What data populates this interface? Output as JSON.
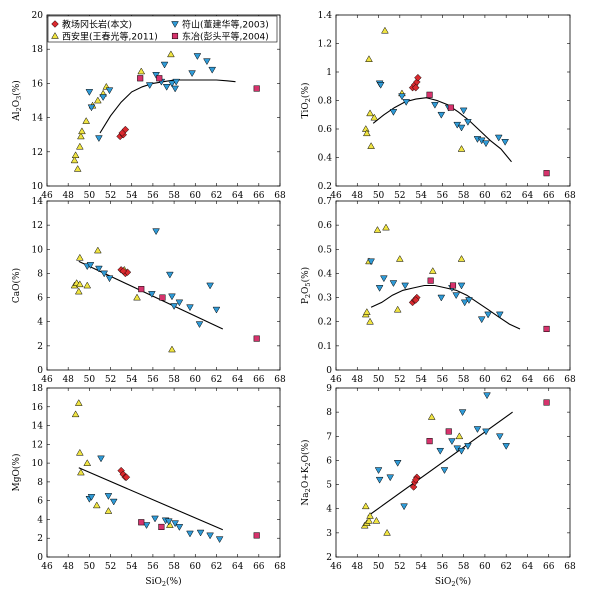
{
  "legend": [
    {
      "key": "diamond",
      "label": "教场冈长岩(本文)",
      "shape": "diamond",
      "color": "#d9292e"
    },
    {
      "key": "down",
      "label": "符山(董建华等,2003)",
      "shape": "tri-down",
      "color": "#2f9ad6"
    },
    {
      "key": "up",
      "label": "西安里(王春光等,2011)",
      "shape": "tri-up",
      "color": "#f0e442"
    },
    {
      "key": "square",
      "label": "东冶(彭头平等,2004)",
      "shape": "square",
      "color": "#d6336c"
    }
  ],
  "chart_data": [
    {
      "type": "scatter",
      "ylabel": [
        "Al",
        "2",
        "O",
        "3",
        "(%)"
      ],
      "xlim": [
        46,
        68
      ],
      "ylim": [
        10,
        20
      ],
      "yticks": [
        10,
        12,
        14,
        16,
        18,
        20
      ],
      "series": {
        "up": [
          [
            48.6,
            11.5
          ],
          [
            48.7,
            11.8
          ],
          [
            48.9,
            11.0
          ],
          [
            49.1,
            12.3
          ],
          [
            49.2,
            12.9
          ],
          [
            49.3,
            13.2
          ],
          [
            49.7,
            13.8
          ],
          [
            50.3,
            14.7
          ],
          [
            50.8,
            15.0
          ],
          [
            51.3,
            15.4
          ],
          [
            51.6,
            15.8
          ],
          [
            54.9,
            16.7
          ],
          [
            57.7,
            17.7
          ]
        ],
        "down": [
          [
            50.0,
            15.5
          ],
          [
            50.2,
            14.6
          ],
          [
            50.9,
            12.8
          ],
          [
            51.3,
            15.2
          ],
          [
            51.9,
            15.6
          ],
          [
            55.7,
            15.9
          ],
          [
            56.3,
            16.5
          ],
          [
            56.8,
            16.1
          ],
          [
            57.1,
            17.1
          ],
          [
            57.3,
            15.8
          ],
          [
            57.8,
            16.0
          ],
          [
            58.1,
            15.7
          ],
          [
            58.2,
            16.1
          ],
          [
            59.7,
            16.6
          ],
          [
            60.2,
            17.6
          ],
          [
            61.1,
            17.3
          ],
          [
            61.6,
            16.8
          ]
        ],
        "diamond": [
          [
            52.9,
            12.9
          ],
          [
            53.2,
            13.0
          ],
          [
            53.4,
            13.3
          ],
          [
            53.1,
            13.1
          ]
        ],
        "square": [
          [
            54.8,
            16.3
          ],
          [
            56.6,
            16.3
          ],
          [
            65.8,
            15.7
          ]
        ]
      },
      "trend": [
        [
          51.0,
          13.1
        ],
        [
          52.0,
          14.1
        ],
        [
          53.0,
          14.9
        ],
        [
          54.0,
          15.5
        ],
        [
          55.0,
          15.8
        ],
        [
          56.0,
          16.0
        ],
        [
          57.0,
          16.1
        ],
        [
          58.0,
          16.2
        ],
        [
          59.0,
          16.2
        ],
        [
          60.0,
          16.2
        ],
        [
          61.0,
          16.2
        ],
        [
          62.0,
          16.2
        ],
        [
          63.0,
          16.15
        ],
        [
          63.8,
          16.1
        ]
      ]
    },
    {
      "type": "scatter",
      "ylabel": [
        "TiO",
        "2",
        "(%)"
      ],
      "xlim": [
        46,
        68
      ],
      "ylim": [
        0.2,
        1.4
      ],
      "yticks": [
        0.2,
        0.4,
        0.6,
        0.8,
        1.0,
        1.2,
        1.4
      ],
      "series": {
        "up": [
          [
            48.8,
            0.6
          ],
          [
            48.9,
            0.57
          ],
          [
            49.1,
            1.09
          ],
          [
            49.2,
            0.71
          ],
          [
            49.3,
            0.48
          ],
          [
            49.6,
            0.68
          ],
          [
            50.6,
            1.29
          ],
          [
            52.2,
            0.85
          ],
          [
            57.8,
            0.46
          ]
        ],
        "down": [
          [
            50.1,
            0.92
          ],
          [
            50.2,
            0.91
          ],
          [
            51.4,
            0.72
          ],
          [
            52.2,
            0.83
          ],
          [
            52.6,
            0.79
          ],
          [
            55.3,
            0.77
          ],
          [
            55.9,
            0.7
          ],
          [
            56.6,
            0.75
          ],
          [
            57.4,
            0.63
          ],
          [
            57.8,
            0.61
          ],
          [
            58.0,
            0.73
          ],
          [
            58.4,
            0.65
          ],
          [
            59.3,
            0.53
          ],
          [
            59.7,
            0.52
          ],
          [
            60.1,
            0.5
          ],
          [
            61.3,
            0.54
          ],
          [
            61.9,
            0.51
          ]
        ],
        "diamond": [
          [
            53.2,
            0.89
          ],
          [
            53.4,
            0.91
          ],
          [
            53.6,
            0.93
          ],
          [
            53.7,
            0.96
          ],
          [
            53.5,
            0.89
          ]
        ],
        "square": [
          [
            54.8,
            0.84
          ],
          [
            56.8,
            0.75
          ],
          [
            65.8,
            0.29
          ]
        ]
      },
      "trend": [
        [
          49.5,
          0.64
        ],
        [
          50.5,
          0.7
        ],
        [
          51.5,
          0.75
        ],
        [
          52.5,
          0.79
        ],
        [
          53.5,
          0.81
        ],
        [
          54.5,
          0.82
        ],
        [
          55.5,
          0.8
        ],
        [
          56.5,
          0.77
        ],
        [
          57.5,
          0.72
        ],
        [
          58.5,
          0.66
        ],
        [
          59.5,
          0.59
        ],
        [
          60.5,
          0.52
        ],
        [
          61.5,
          0.46
        ],
        [
          62.5,
          0.37
        ]
      ]
    },
    {
      "type": "scatter",
      "ylabel": [
        "CaO(%)"
      ],
      "xlim": [
        46,
        68
      ],
      "ylim": [
        0,
        14
      ],
      "yticks": [
        0,
        2,
        4,
        6,
        8,
        10,
        12,
        14
      ],
      "series": {
        "up": [
          [
            48.6,
            7.0
          ],
          [
            48.8,
            7.2
          ],
          [
            49.0,
            6.5
          ],
          [
            49.1,
            7.1
          ],
          [
            49.1,
            9.3
          ],
          [
            49.8,
            7.0
          ],
          [
            50.8,
            9.9
          ],
          [
            53.3,
            8.3
          ],
          [
            54.5,
            6.0
          ],
          [
            57.8,
            1.7
          ]
        ],
        "down": [
          [
            49.8,
            8.6
          ],
          [
            50.1,
            8.7
          ],
          [
            50.9,
            8.4
          ],
          [
            51.4,
            8.0
          ],
          [
            51.9,
            7.6
          ],
          [
            55.9,
            6.3
          ],
          [
            56.3,
            11.5
          ],
          [
            57.6,
            7.9
          ],
          [
            57.8,
            6.1
          ],
          [
            58.0,
            5.3
          ],
          [
            58.5,
            5.6
          ],
          [
            59.5,
            5.2
          ],
          [
            60.4,
            3.8
          ],
          [
            61.4,
            7.0
          ],
          [
            62.0,
            5.0
          ]
        ],
        "diamond": [
          [
            53.0,
            8.3
          ],
          [
            53.4,
            8.0
          ],
          [
            53.6,
            8.1
          ],
          [
            53.2,
            8.2
          ]
        ],
        "square": [
          [
            54.9,
            6.7
          ],
          [
            56.9,
            6.0
          ],
          [
            65.8,
            2.6
          ]
        ]
      },
      "trend": [
        [
          49.0,
          9.0
        ],
        [
          62.6,
          3.4
        ]
      ]
    },
    {
      "type": "scatter",
      "ylabel": [
        "P",
        "2",
        "O",
        "5",
        "(%)"
      ],
      "xlim": [
        46,
        68
      ],
      "ylim": [
        0,
        0.7
      ],
      "yticks": [
        0,
        0.1,
        0.2,
        0.3,
        0.4,
        0.5,
        0.6,
        0.7
      ],
      "series": {
        "up": [
          [
            48.8,
            0.23
          ],
          [
            48.9,
            0.24
          ],
          [
            49.1,
            0.45
          ],
          [
            49.2,
            0.2
          ],
          [
            49.9,
            0.58
          ],
          [
            50.7,
            0.59
          ],
          [
            51.8,
            0.25
          ],
          [
            52.0,
            0.46
          ],
          [
            55.1,
            0.41
          ],
          [
            57.8,
            0.46
          ]
        ],
        "down": [
          [
            49.3,
            0.45
          ],
          [
            50.1,
            0.34
          ],
          [
            50.5,
            0.38
          ],
          [
            51.4,
            0.36
          ],
          [
            52.5,
            0.35
          ],
          [
            55.9,
            0.3
          ],
          [
            56.9,
            0.34
          ],
          [
            57.3,
            0.31
          ],
          [
            57.8,
            0.35
          ],
          [
            58.1,
            0.28
          ],
          [
            58.5,
            0.29
          ],
          [
            59.7,
            0.21
          ],
          [
            60.3,
            0.23
          ],
          [
            61.4,
            0.23
          ]
        ],
        "diamond": [
          [
            53.2,
            0.28
          ],
          [
            53.4,
            0.29
          ],
          [
            53.6,
            0.3
          ],
          [
            53.5,
            0.29
          ]
        ],
        "square": [
          [
            54.9,
            0.37
          ],
          [
            57.0,
            0.35
          ],
          [
            65.8,
            0.17
          ]
        ]
      },
      "trend": [
        [
          49.3,
          0.26
        ],
        [
          50.3,
          0.28
        ],
        [
          51.3,
          0.31
        ],
        [
          52.3,
          0.33
        ],
        [
          53.3,
          0.34
        ],
        [
          54.3,
          0.35
        ],
        [
          55.3,
          0.35
        ],
        [
          56.3,
          0.34
        ],
        [
          57.3,
          0.33
        ],
        [
          58.3,
          0.31
        ],
        [
          59.3,
          0.28
        ],
        [
          60.3,
          0.25
        ],
        [
          61.3,
          0.22
        ],
        [
          62.3,
          0.19
        ],
        [
          63.3,
          0.17
        ]
      ]
    },
    {
      "type": "scatter",
      "ylabel": [
        "MgO(%)"
      ],
      "xlim": [
        46,
        68
      ],
      "ylim": [
        0,
        18
      ],
      "yticks": [
        0,
        2,
        4,
        6,
        8,
        10,
        12,
        14,
        16,
        18
      ],
      "series": {
        "up": [
          [
            48.7,
            15.2
          ],
          [
            49.0,
            16.4
          ],
          [
            49.1,
            11.1
          ],
          [
            49.2,
            9.0
          ],
          [
            49.8,
            10.0
          ],
          [
            50.7,
            5.5
          ],
          [
            51.8,
            4.9
          ],
          [
            57.6,
            3.4
          ]
        ],
        "down": [
          [
            50.0,
            6.2
          ],
          [
            50.2,
            6.4
          ],
          [
            51.1,
            10.5
          ],
          [
            51.8,
            6.5
          ],
          [
            52.3,
            5.9
          ],
          [
            55.4,
            3.4
          ],
          [
            56.2,
            4.1
          ],
          [
            57.2,
            3.9
          ],
          [
            57.5,
            3.8
          ],
          [
            58.1,
            3.6
          ],
          [
            58.5,
            3.2
          ],
          [
            59.5,
            2.5
          ],
          [
            60.5,
            2.6
          ],
          [
            61.4,
            2.3
          ],
          [
            62.3,
            1.9
          ]
        ],
        "diamond": [
          [
            53.0,
            9.2
          ],
          [
            53.2,
            8.8
          ],
          [
            53.4,
            8.5
          ],
          [
            53.5,
            8.5
          ]
        ],
        "square": [
          [
            54.9,
            3.7
          ],
          [
            56.8,
            3.2
          ],
          [
            65.8,
            2.3
          ]
        ]
      },
      "trend": [
        [
          49.0,
          9.5
        ],
        [
          62.6,
          2.9
        ]
      ]
    },
    {
      "type": "scatter",
      "ylabel": [
        "Na",
        "2",
        "O+K",
        "2",
        "O(%)"
      ],
      "xlim": [
        46,
        68
      ],
      "ylim": [
        2,
        9
      ],
      "yticks": [
        2,
        3,
        4,
        5,
        6,
        7,
        8,
        9
      ],
      "series": {
        "up": [
          [
            48.7,
            3.3
          ],
          [
            48.9,
            3.4
          ],
          [
            49.1,
            3.5
          ],
          [
            49.2,
            3.7
          ],
          [
            48.8,
            4.1
          ],
          [
            49.8,
            3.5
          ],
          [
            50.8,
            3.0
          ],
          [
            55.0,
            7.8
          ],
          [
            57.6,
            7.0
          ]
        ],
        "down": [
          [
            50.0,
            5.6
          ],
          [
            50.1,
            5.2
          ],
          [
            51.1,
            5.3
          ],
          [
            51.8,
            5.9
          ],
          [
            52.4,
            4.1
          ],
          [
            55.8,
            6.4
          ],
          [
            56.2,
            5.6
          ],
          [
            56.9,
            6.8
          ],
          [
            57.4,
            6.5
          ],
          [
            57.8,
            6.4
          ],
          [
            57.9,
            8.0
          ],
          [
            58.4,
            6.6
          ],
          [
            59.3,
            7.3
          ],
          [
            60.1,
            7.2
          ],
          [
            60.2,
            8.7
          ],
          [
            61.4,
            7.0
          ],
          [
            62.0,
            6.6
          ]
        ],
        "diamond": [
          [
            53.3,
            4.9
          ],
          [
            53.4,
            5.1
          ],
          [
            53.6,
            5.3
          ],
          [
            53.5,
            5.2
          ]
        ],
        "square": [
          [
            54.8,
            6.8
          ],
          [
            56.6,
            7.2
          ],
          [
            65.8,
            8.4
          ]
        ]
      },
      "trend": [
        [
          49.0,
          3.7
        ],
        [
          62.6,
          8.0
        ]
      ]
    }
  ],
  "xlabel": "SiO2(%)",
  "xticks": [
    46,
    48,
    50,
    52,
    54,
    56,
    58,
    60,
    62,
    64,
    66,
    68
  ]
}
